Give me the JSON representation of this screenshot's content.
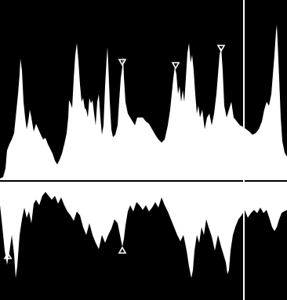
{
  "image": {
    "kind": "doppler-spectral-waveform",
    "colors": {
      "background": "#000000",
      "waveform": "#ffffff",
      "baseline": "#ffffff",
      "cursor": "#ffffff",
      "marker": "#ffffff"
    },
    "markers": {
      "upper_icon": "triangle-down-icon",
      "lower_icon": "triangle-up-icon"
    }
  }
}
